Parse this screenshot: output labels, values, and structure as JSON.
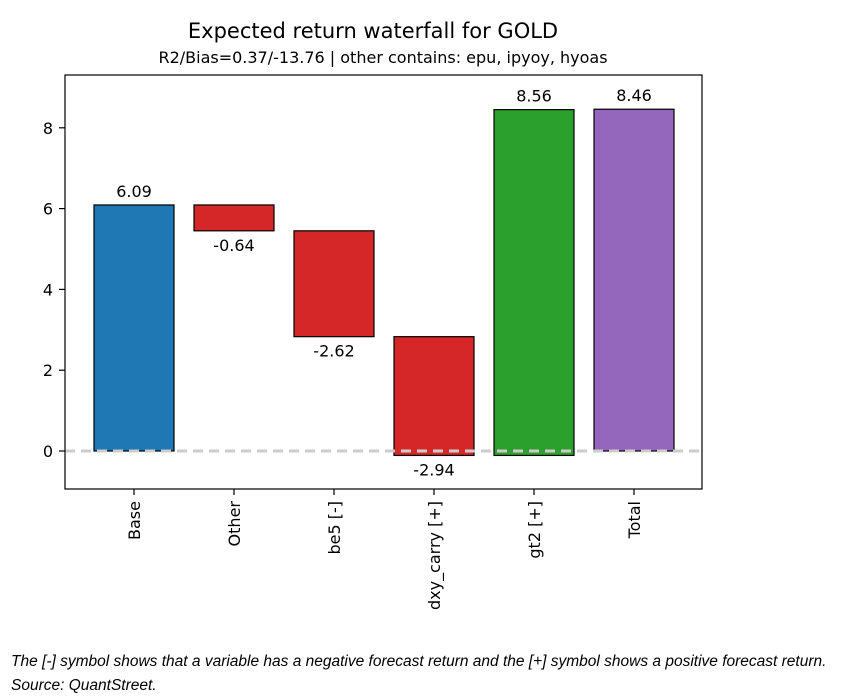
{
  "chart_data": {
    "type": "bar",
    "subtype": "waterfall",
    "title": "Expected return waterfall for GOLD",
    "subtitle": "R2/Bias=0.37/-13.76 | other contains: epu, ipyoy, hyoas",
    "xlabel": "",
    "ylabel": "",
    "categories": [
      "Base",
      "Other",
      "be5 [-]",
      "dxy_carry [+]",
      "gt2 [+]",
      "Total"
    ],
    "bars": [
      {
        "category": "Base",
        "bottom": 0,
        "top": 6.09,
        "label": "6.09",
        "label_pos": "above",
        "color": "#1f77b4"
      },
      {
        "category": "Other",
        "bottom": 5.45,
        "top": 6.09,
        "label": "-0.64",
        "label_pos": "below",
        "color": "#d62728"
      },
      {
        "category": "be5 [-]",
        "bottom": 2.83,
        "top": 5.45,
        "label": "-2.62",
        "label_pos": "below",
        "color": "#d62728"
      },
      {
        "category": "dxy_carry [+]",
        "bottom": -0.11,
        "top": 2.83,
        "label": "-2.94",
        "label_pos": "below",
        "color": "#d62728"
      },
      {
        "category": "gt2 [+]",
        "bottom": -0.11,
        "top": 8.45,
        "label": "8.56",
        "label_pos": "above",
        "color": "#2ca02c"
      },
      {
        "category": "Total",
        "bottom": 0,
        "top": 8.46,
        "label": "8.46",
        "label_pos": "above",
        "color": "#9467bd"
      }
    ],
    "ylim": [
      -0.95,
      9.4
    ],
    "yticks": [
      0,
      2,
      4,
      6,
      8
    ],
    "baseline": {
      "value": 0,
      "style": "dashed",
      "color": "#cccccc"
    },
    "grid": false,
    "legend": "none"
  },
  "caption": "The [-] symbol shows that a variable has a negative forecast return and the [+] symbol shows a positive forecast return. Source: QuantStreet."
}
